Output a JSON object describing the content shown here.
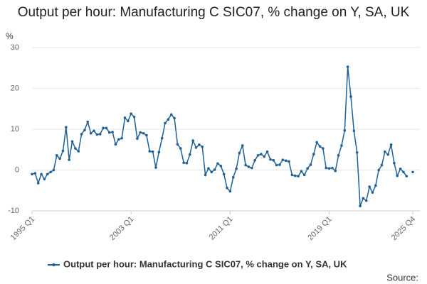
{
  "chart_data": {
    "type": "line",
    "title": "Output per hour: Manufacturing C SIC07, % change on Y, SA, UK",
    "y_unit": "%",
    "source": "Source:",
    "categories": [
      "1995 Q1",
      null,
      null,
      null,
      null,
      null,
      null,
      null,
      null,
      null,
      null,
      null,
      null,
      null,
      null,
      null,
      null,
      null,
      null,
      null,
      null,
      null,
      null,
      null,
      null,
      null,
      null,
      null,
      null,
      null,
      null,
      null,
      "2003 Q1",
      null,
      null,
      null,
      null,
      null,
      null,
      null,
      null,
      null,
      null,
      null,
      null,
      null,
      null,
      null,
      null,
      null,
      null,
      null,
      null,
      null,
      null,
      null,
      null,
      null,
      null,
      null,
      null,
      null,
      null,
      null,
      "2011 Q1",
      null,
      null,
      null,
      null,
      null,
      null,
      null,
      null,
      null,
      null,
      null,
      null,
      null,
      null,
      null,
      null,
      null,
      null,
      null,
      null,
      null,
      null,
      null,
      null,
      null,
      null,
      null,
      null,
      null,
      null,
      null,
      "2019 Q1",
      null,
      null,
      null,
      null,
      null,
      null,
      null,
      null,
      null,
      null,
      null,
      null,
      null,
      null,
      null,
      null,
      null,
      null,
      null,
      null,
      null,
      null,
      null,
      null,
      null,
      null,
      "2025 Q4"
    ],
    "series": [
      {
        "name": "Output per hour: Manufacturing C SIC07, % change on Y, SA, UK",
        "color": "#206095",
        "values": [
          -1,
          -0.8,
          -3.2,
          -1,
          -2.2,
          -1,
          -0.5,
          0,
          3.6,
          2.8,
          4.7,
          10.5,
          2.5,
          7,
          5.3,
          4.6,
          8.8,
          9.8,
          11.8,
          9,
          9.6,
          8.7,
          8.8,
          10.3,
          10.3,
          9.2,
          9.3,
          6.3,
          7.5,
          7.8,
          12.8,
          12,
          13.8,
          13,
          7.7,
          9.2,
          9,
          8.5,
          4.6,
          4.5,
          0.6,
          4.4,
          7.8,
          11.5,
          12.4,
          13.6,
          12.7,
          6.3,
          5.3,
          1.8,
          1.7,
          3.8,
          7.2,
          5.5,
          6.2,
          5.7,
          -1.2,
          0.4,
          -0.5,
          0.1,
          1.6,
          1,
          -1,
          -4.4,
          -5.2,
          -1.8,
          0.3,
          4.2,
          6,
          1.2,
          0.8,
          0.5,
          2.4,
          3.6,
          3.9,
          3.3,
          4.5,
          2.6,
          2.4,
          1.2,
          1.3,
          2.5,
          2.3,
          2.1,
          -1.2,
          -1.4,
          -1.5,
          -0.3,
          -1.2,
          0.4,
          1.3,
          3.9,
          6.8,
          5.8,
          5.3,
          0.5,
          0.4,
          0.5,
          -0.2,
          3.6,
          6,
          9.7,
          25.3,
          18,
          9.6,
          4.3,
          -8.8,
          -6.9,
          -7.5,
          -4.1,
          -5.5,
          -3.8,
          0,
          1.2,
          4.5,
          3.8,
          6.2,
          1.7,
          -1.4,
          0.3,
          -0.5,
          -1.5,
          null,
          -0.5
        ]
      }
    ],
    "ylim": [
      -10,
      30
    ],
    "yticks": [
      30,
      20,
      10,
      0,
      -10
    ],
    "grid": true,
    "legend": "bottom"
  }
}
